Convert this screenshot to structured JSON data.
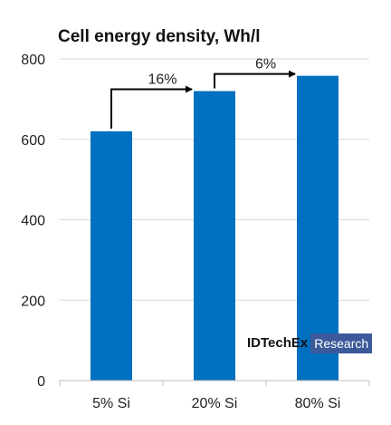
{
  "chart_data": {
    "type": "bar",
    "title": "Cell energy density, Wh/l",
    "categories": [
      "5% Si",
      "20% Si",
      "80% Si"
    ],
    "values": [
      620,
      720,
      758
    ],
    "ylim": [
      0,
      800
    ],
    "yticks": [
      0,
      200,
      400,
      600,
      800
    ],
    "grid": true,
    "bar_color": "#0070c0",
    "annotations": [
      {
        "from": "5% Si",
        "to": "20% Si",
        "label": "16%"
      },
      {
        "from": "20% Si",
        "to": "80% Si",
        "label": "6%"
      }
    ]
  },
  "watermark": {
    "main": "IDTechEx",
    "sub": "Research"
  }
}
